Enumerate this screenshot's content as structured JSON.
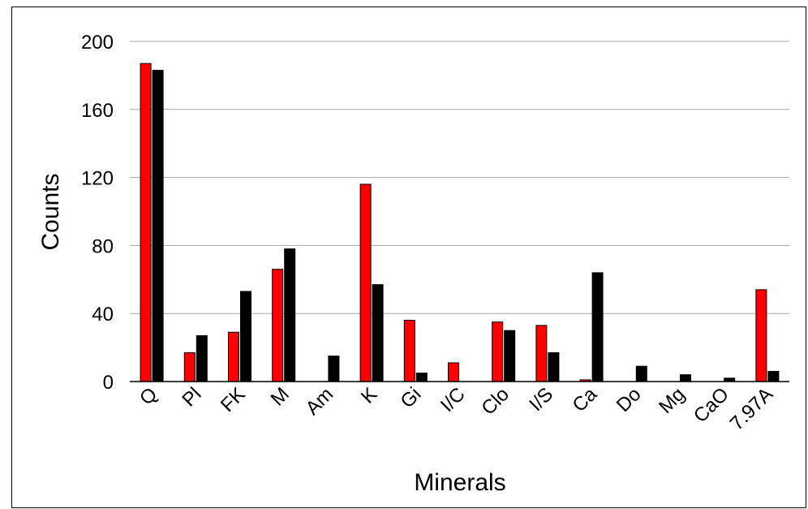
{
  "chart_data": {
    "type": "bar",
    "title": "",
    "xlabel": "Minerals",
    "ylabel": "Counts",
    "ylim": [
      0,
      200
    ],
    "yticks": [
      0,
      40,
      80,
      120,
      160,
      200
    ],
    "grid": true,
    "legend": "none",
    "categories": [
      "Q",
      "Pl",
      "FK",
      "M",
      "Am",
      "K",
      "Gi",
      "I/C",
      "Clo",
      "I/S",
      "Ca",
      "Do",
      "Mg",
      "CaO",
      "7.97A"
    ],
    "series": [
      {
        "color": "#ff0000",
        "values": [
          187,
          17,
          29,
          66,
          0,
          116,
          36,
          11,
          35,
          33,
          1,
          0,
          0,
          0,
          54
        ]
      },
      {
        "color": "#000000",
        "values": [
          183,
          27,
          53,
          78,
          15,
          57,
          5,
          0,
          30,
          17,
          64,
          9,
          4,
          2,
          6
        ]
      }
    ]
  }
}
